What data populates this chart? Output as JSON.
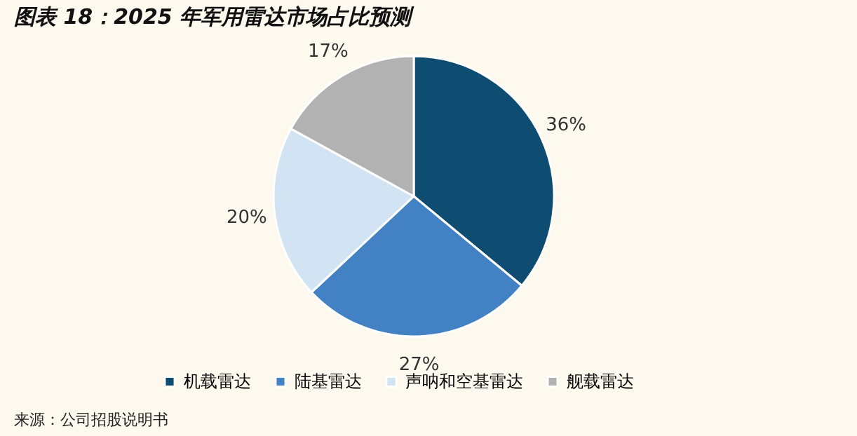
{
  "chart_data": {
    "type": "pie",
    "title": "图表 18：2025 年军用雷达市场占比预测",
    "categories": [
      "机载雷达",
      "陆基雷达",
      "声呐和空基雷达",
      "舰载雷达"
    ],
    "values": [
      36,
      27,
      20,
      17
    ],
    "colors": [
      "#0e4c72",
      "#4282c4",
      "#d2e3f3",
      "#b2b2b2"
    ],
    "value_labels": [
      "36%",
      "27%",
      "20%",
      "17%"
    ],
    "legend": "bottom",
    "annotations": [
      "来源：公司招股说明书"
    ]
  }
}
